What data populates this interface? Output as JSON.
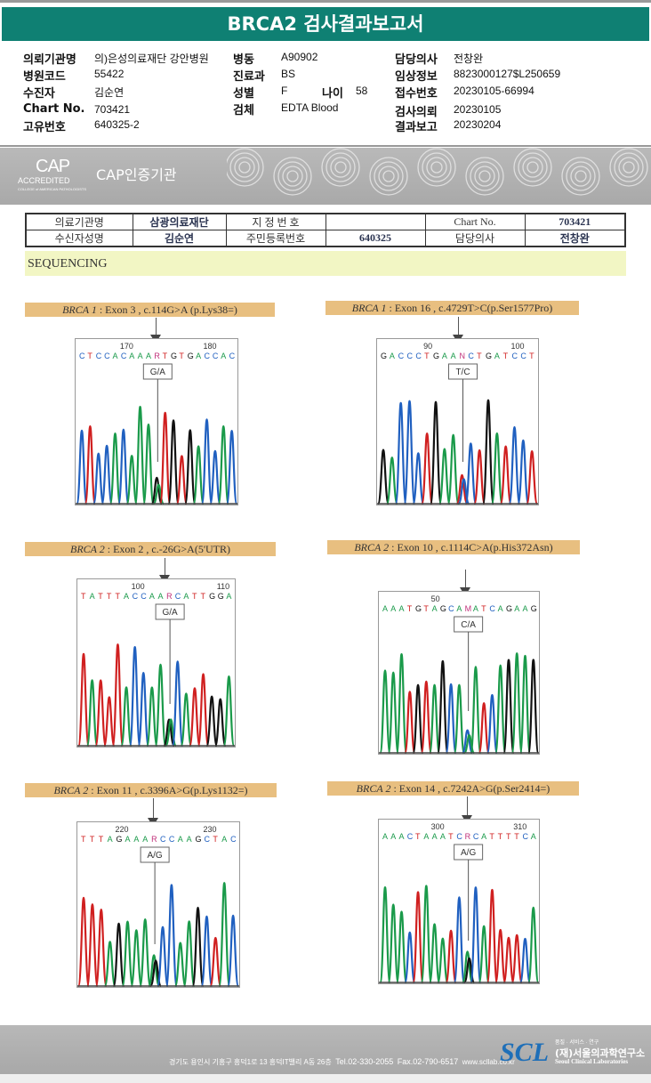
{
  "title": "BRCA2 검사결과보고서",
  "patient_info": {
    "col1": [
      {
        "k": "의뢰기관명",
        "v": "의)은성의료재단 강안병원"
      },
      {
        "k": "병원코드",
        "v": "55422"
      },
      {
        "k": "수진자",
        "v": "김순연"
      },
      {
        "k": "Chart No.",
        "v": "703421"
      },
      {
        "k": "고유번호",
        "v": "640325-2"
      }
    ],
    "col2": [
      {
        "k": "병동",
        "v": "A90902"
      },
      {
        "k": "진료과",
        "v": "BS"
      },
      {
        "k": "성별",
        "v": "F"
      },
      {
        "k": "검체",
        "v": "EDTA Blood"
      }
    ],
    "age": {
      "k": "나이",
      "v": "58"
    },
    "col3": [
      {
        "k": "담당의사",
        "v": "전창완"
      },
      {
        "k": "임상정보",
        "v": "8823000127$L250659"
      },
      {
        "k": "접수번호",
        "v": "20230105-66994"
      },
      {
        "k": "검사의뢰",
        "v": "20230105"
      },
      {
        "k": "결과보고",
        "v": "20230204"
      }
    ]
  },
  "cap": {
    "logo_big": "CAP",
    "logo_acc": "ACCREDITED",
    "logo_college": "COLLEGE of AMERICAN PATHOLOGISTS",
    "label": "CAP인증기관"
  },
  "report_table": {
    "rows": [
      [
        "의료기관명",
        "삼광의료재단",
        "지 정 번 호",
        "",
        "Chart No.",
        "703421"
      ],
      [
        "수신자성명",
        "김순연",
        "주민등록번호",
        "640325",
        "담당의사",
        "전창완"
      ]
    ]
  },
  "section_title": "SEQUENCING",
  "colors": {
    "A": "#1a9a4a",
    "C": "#2060c0",
    "G": "#111111",
    "T": "#d02020",
    "ambig": "#c0307a"
  },
  "variants": [
    {
      "gene": "BRCA 1",
      "desc": " : Exon 3 , c.114G>A (p.Lys38=)",
      "pos_left": "170",
      "pos_right": "180",
      "sequence": "CTCCACAAARTGTGACCAC",
      "call": "G/A"
    },
    {
      "gene": "BRCA 1",
      "desc": " : Exon 16 , c.4729T>C(p.Ser1577Pro)",
      "pos_left": "90",
      "pos_right": "100",
      "sequence": "GACCCTGAANCTGATCCT",
      "call": "T/C"
    },
    {
      "gene": "BRCA 2",
      "desc": " : Exon 2 , c.-26G>A(5'UTR)",
      "pos_left": "100",
      "pos_right": "110",
      "sequence": "TATTTACCAARCATTGGA",
      "call": "G/A"
    },
    {
      "gene": "BRCA 2",
      "desc": " : Exon 10 , c.1114C>A(p.His372Asn)",
      "pos_left": "50",
      "pos_right": "",
      "sequence": "AAATGTAGCAMATCAGAAG",
      "call": "C/A"
    },
    {
      "gene": "BRCA 2",
      "desc": " : Exon 11 , c.3396A>G(p.Lys1132=)",
      "pos_left": "220",
      "pos_right": "230",
      "sequence": "TTTAGAAARCCAAGCTAC",
      "call": "A/G"
    },
    {
      "gene": "BRCA 2",
      "desc": " : Exon 14 , c.7242A>G(p.Ser2414=)",
      "pos_left": "300",
      "pos_right": "310",
      "sequence": "AAACTAAATCRCATTTTCA",
      "call": "A/G"
    }
  ],
  "footer": {
    "address": "경기도 용인시 기흥구 흥덕1로 13 흥덕IT밸리 A동 26층",
    "tel": "Tel.02-330-2055",
    "fax": "Fax.02-790-6517",
    "web": "www.scllab.co.kr",
    "logo": "SCL",
    "slogan": "품질 · 서비스 · 연구",
    "name_ko": "(재)서울의과학연구소",
    "name_en": "Seoul Clinical Laboratories"
  }
}
